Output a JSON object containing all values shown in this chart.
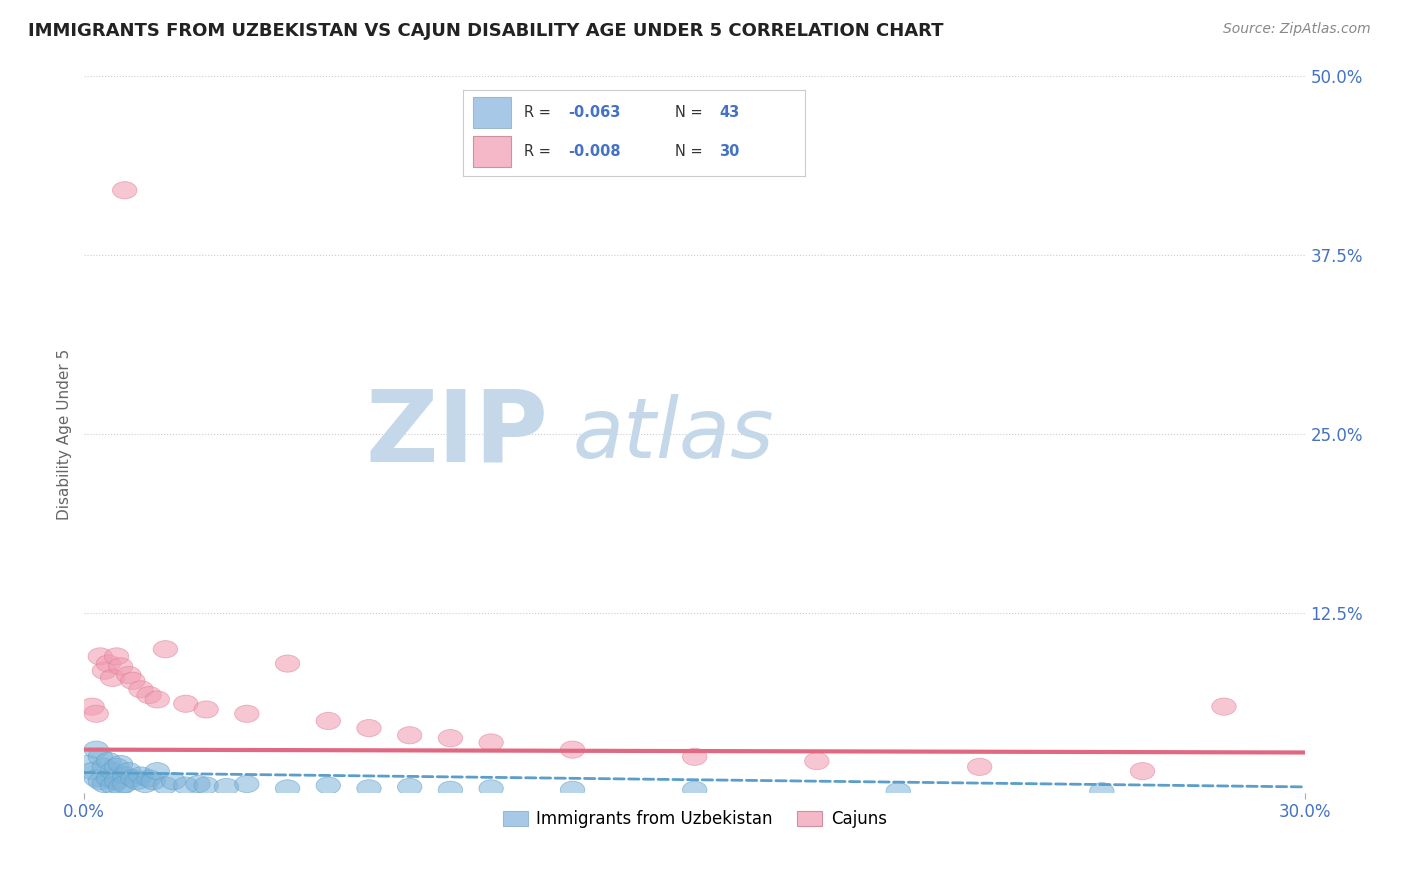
{
  "title": "IMMIGRANTS FROM UZBEKISTAN VS CAJUN DISABILITY AGE UNDER 5 CORRELATION CHART",
  "source": "Source: ZipAtlas.com",
  "ylabel": "Disability Age Under 5",
  "xlim": [
    0.0,
    0.3
  ],
  "ylim": [
    0.0,
    0.5
  ],
  "xtick_values": [
    0.0,
    0.3
  ],
  "xtick_labels": [
    "0.0%",
    "30.0%"
  ],
  "ytick_values": [
    0.125,
    0.25,
    0.375,
    0.5
  ],
  "ytick_labels": [
    "12.5%",
    "25.0%",
    "37.5%",
    "50.0%"
  ],
  "background_color": "#ffffff",
  "grid_color": "#cccccc",
  "legend_color1": "#a8c8e8",
  "legend_color2": "#f4b8c8",
  "blue_scatter_x": [
    0.001,
    0.002,
    0.003,
    0.003,
    0.004,
    0.004,
    0.005,
    0.005,
    0.006,
    0.006,
    0.007,
    0.007,
    0.008,
    0.008,
    0.009,
    0.009,
    0.01,
    0.01,
    0.011,
    0.012,
    0.013,
    0.014,
    0.015,
    0.016,
    0.017,
    0.018,
    0.02,
    0.022,
    0.025,
    0.028,
    0.03,
    0.035,
    0.04,
    0.05,
    0.06,
    0.07,
    0.08,
    0.09,
    0.1,
    0.12,
    0.15,
    0.2,
    0.25
  ],
  "blue_scatter_y": [
    0.02,
    0.015,
    0.03,
    0.01,
    0.025,
    0.008,
    0.018,
    0.006,
    0.022,
    0.01,
    0.015,
    0.005,
    0.018,
    0.008,
    0.02,
    0.004,
    0.012,
    0.006,
    0.015,
    0.01,
    0.008,
    0.012,
    0.006,
    0.01,
    0.008,
    0.015,
    0.005,
    0.008,
    0.005,
    0.006,
    0.005,
    0.004,
    0.006,
    0.003,
    0.005,
    0.003,
    0.004,
    0.002,
    0.003,
    0.002,
    0.002,
    0.001,
    0.001
  ],
  "pink_scatter_x": [
    0.002,
    0.003,
    0.004,
    0.005,
    0.006,
    0.007,
    0.008,
    0.009,
    0.01,
    0.011,
    0.012,
    0.014,
    0.016,
    0.018,
    0.02,
    0.025,
    0.03,
    0.04,
    0.05,
    0.06,
    0.07,
    0.08,
    0.09,
    0.1,
    0.12,
    0.15,
    0.18,
    0.22,
    0.26,
    0.28
  ],
  "pink_scatter_y": [
    0.06,
    0.055,
    0.095,
    0.085,
    0.09,
    0.08,
    0.095,
    0.088,
    0.42,
    0.082,
    0.078,
    0.072,
    0.068,
    0.065,
    0.1,
    0.062,
    0.058,
    0.055,
    0.09,
    0.05,
    0.045,
    0.04,
    0.038,
    0.035,
    0.03,
    0.025,
    0.022,
    0.018,
    0.015,
    0.06
  ],
  "blue_trend_x": [
    0.0,
    0.3
  ],
  "blue_trend_y": [
    0.014,
    0.004
  ],
  "pink_trend_x": [
    0.0,
    0.3
  ],
  "pink_trend_y": [
    0.03,
    0.028
  ],
  "watermark_zip": "ZIP",
  "watermark_atlas": "atlas",
  "watermark_color_zip": "#c5d8ea",
  "watermark_color_atlas": "#c5d8ea",
  "dot_size": 50,
  "dot_color_blue": "#7eb3d8",
  "dot_color_pink": "#f09ab0",
  "dot_alpha": 0.55,
  "dot_linewidth": 0.8,
  "dot_edgecolor_blue": "#5a9ec9",
  "dot_edgecolor_pink": "#e07890"
}
